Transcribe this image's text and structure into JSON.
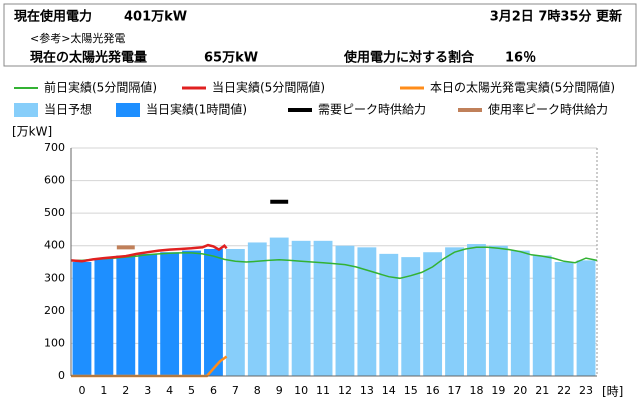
{
  "header": {
    "usage_label": "現在使用電力",
    "usage_value": "401万kW",
    "updated": "3月2日 7時35分 更新",
    "reference": "<参考>太陽光発電",
    "solar_label": "現在の太陽光発電量",
    "solar_value": "65万kW",
    "ratio_label": "使用電力に対する割合",
    "ratio_value": "16％"
  },
  "chart_data": {
    "type": "bar",
    "y_label": "[万kW]",
    "x_label": "[時]",
    "categories": [
      0,
      1,
      2,
      3,
      4,
      5,
      6,
      7,
      8,
      9,
      10,
      11,
      12,
      13,
      14,
      15,
      16,
      17,
      18,
      19,
      20,
      21,
      22,
      23
    ],
    "xlim": [
      0,
      24
    ],
    "ylim": [
      0,
      700
    ],
    "yticks": [
      0,
      100,
      200,
      300,
      400,
      500,
      600,
      700
    ],
    "grid": true,
    "series": [
      {
        "name": "前日実績(5分間隔値)",
        "type": "line",
        "color": "#33b233",
        "x": [
          0,
          0.5,
          1,
          1.5,
          2,
          2.5,
          3,
          3.5,
          4,
          4.5,
          5,
          5.5,
          6,
          6.5,
          7,
          7.5,
          8,
          8.5,
          9,
          9.5,
          10,
          10.5,
          11,
          11.5,
          12,
          12.5,
          13,
          13.5,
          14,
          14.5,
          15,
          15.5,
          16,
          16.5,
          17,
          17.5,
          18,
          18.5,
          19,
          19.5,
          20,
          20.5,
          21,
          21.5,
          22,
          22.5,
          23,
          23.5,
          24
        ],
        "values": [
          355,
          355,
          358,
          360,
          362,
          365,
          368,
          372,
          375,
          377,
          378,
          378,
          375,
          368,
          358,
          352,
          350,
          352,
          355,
          357,
          355,
          352,
          350,
          348,
          345,
          342,
          335,
          325,
          315,
          305,
          300,
          308,
          318,
          335,
          360,
          380,
          390,
          395,
          395,
          392,
          388,
          382,
          372,
          368,
          362,
          352,
          348,
          362,
          355
        ]
      },
      {
        "name": "当日実績(5分間隔値)",
        "type": "line",
        "color": "#e02020",
        "x": [
          0,
          0.5,
          1,
          1.5,
          2,
          2.5,
          3,
          3.5,
          4,
          4.5,
          5,
          5.5,
          6,
          6.25,
          6.5,
          6.75,
          7,
          7.1
        ],
        "values": [
          355,
          352,
          358,
          362,
          365,
          368,
          375,
          380,
          385,
          388,
          390,
          392,
          395,
          402,
          398,
          388,
          400,
          392
        ]
      },
      {
        "name": "本日の太陽光発電実績(5分間隔値)",
        "type": "line",
        "color": "#ff8c1a",
        "x": [
          0,
          6.2,
          6.4,
          6.6,
          6.8,
          7,
          7.1
        ],
        "values": [
          0,
          0,
          15,
          30,
          45,
          55,
          60
        ]
      },
      {
        "name": "当日予想",
        "type": "bar",
        "color": "#87cefa",
        "values": [
          null,
          null,
          null,
          null,
          null,
          null,
          null,
          390,
          410,
          425,
          415,
          415,
          400,
          395,
          375,
          365,
          380,
          395,
          405,
          400,
          385,
          370,
          350,
          355
        ]
      },
      {
        "name": "当日実績(1時間値)",
        "type": "bar",
        "color": "#1e8fff",
        "values": [
          350,
          360,
          370,
          375,
          380,
          385,
          390,
          null,
          null,
          null,
          null,
          null,
          null,
          null,
          null,
          null,
          null,
          null,
          null,
          null,
          null,
          null,
          null,
          null
        ]
      },
      {
        "name": "需要ピーク時供給力",
        "type": "marker",
        "color": "#000000",
        "values": [
          null,
          null,
          null,
          null,
          null,
          null,
          null,
          null,
          null,
          535,
          null,
          null,
          null,
          null,
          null,
          null,
          null,
          null,
          null,
          null,
          null,
          null,
          null,
          null
        ]
      },
      {
        "name": "使用率ピーク時供給力",
        "type": "marker",
        "color": "#c0805a",
        "values": [
          null,
          null,
          395,
          null,
          null,
          null,
          null,
          null,
          null,
          null,
          null,
          null,
          null,
          null,
          null,
          null,
          null,
          null,
          null,
          null,
          null,
          null,
          null,
          null
        ]
      }
    ]
  }
}
